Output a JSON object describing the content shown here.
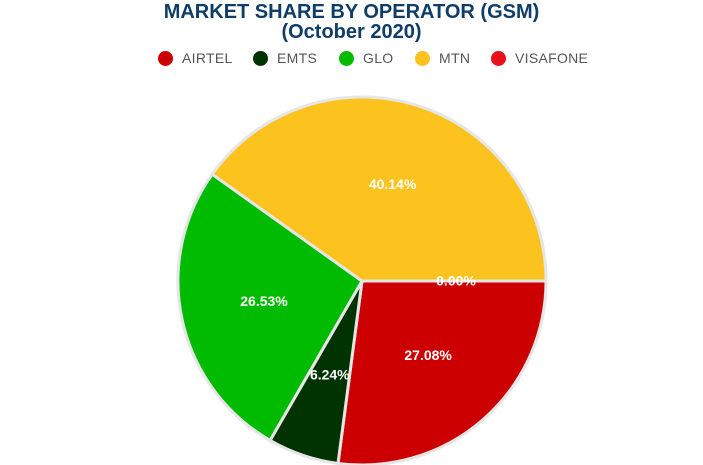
{
  "chart_data": {
    "type": "pie",
    "title": "MARKET SHARE BY OPERATOR (GSM)",
    "subtitle": "(October 2020)",
    "legend_position": "top",
    "categories": [
      "AIRTEL",
      "EMTS",
      "GLO",
      "MTN",
      "VISAFONE"
    ],
    "values": [
      27.08,
      6.24,
      26.53,
      40.14,
      0.0
    ],
    "labels": [
      "27.08%",
      "6.24%",
      "26.53%",
      "40.14%",
      "0.00%"
    ],
    "colors": [
      "#cc0000",
      "#003300",
      "#00bb00",
      "#fcc21e",
      "#e8101a"
    ]
  }
}
